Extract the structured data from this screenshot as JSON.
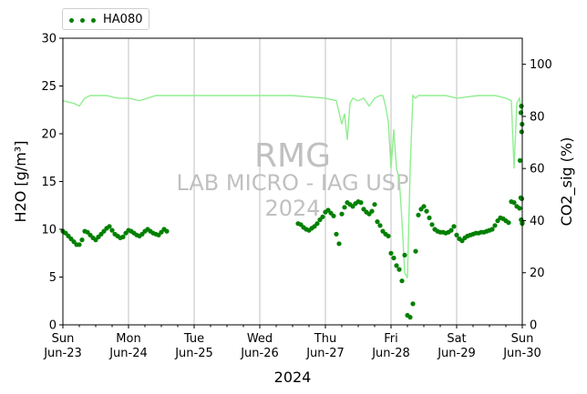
{
  "chart_data": {
    "type": "scatter",
    "legend": {
      "placement": "top-left",
      "entries": [
        "HA080"
      ]
    },
    "grid": "x-only",
    "colors": {
      "h2o": "#008000",
      "co2": "#90ee90",
      "watermark": "#c0c0c0"
    },
    "xlabel": "2024",
    "x_ticks": [
      {
        "day": "Sun",
        "date": "Jun-23"
      },
      {
        "day": "Mon",
        "date": "Jun-24"
      },
      {
        "day": "Tue",
        "date": "Jun-25"
      },
      {
        "day": "Wed",
        "date": "Jun-26"
      },
      {
        "day": "Thu",
        "date": "Jun-27"
      },
      {
        "day": "Fri",
        "date": "Jun-28"
      },
      {
        "day": "Sat",
        "date": "Jun-29"
      },
      {
        "day": "Sun",
        "date": "Jun-30"
      }
    ],
    "xlim": [
      "2024-06-23",
      "2024-06-30"
    ],
    "y_left": {
      "label": "H2O [g/m³]",
      "ylim": [
        0,
        30
      ],
      "ticks": [
        "0",
        "5",
        "10",
        "15",
        "20",
        "25",
        "30"
      ]
    },
    "y_right": {
      "label": "CO2_sig (%)",
      "ylim": [
        0,
        110
      ],
      "ticks": [
        "0",
        "20",
        "40",
        "60",
        "80",
        "100"
      ]
    },
    "watermark": [
      "RMG",
      "LAB MICRO - IAG USP",
      "2024"
    ],
    "series": [
      {
        "name": "HA080",
        "axis": "left",
        "marker": "dot",
        "x": [
          "2024-06-23 00:00",
          "2024-06-23 01:00",
          "2024-06-23 02:00",
          "2024-06-23 03:00",
          "2024-06-23 04:00",
          "2024-06-23 05:00",
          "2024-06-23 06:00",
          "2024-06-23 07:00",
          "2024-06-23 08:00",
          "2024-06-23 09:00",
          "2024-06-23 10:00",
          "2024-06-23 11:00",
          "2024-06-23 12:00",
          "2024-06-23 13:00",
          "2024-06-23 14:00",
          "2024-06-23 15:00",
          "2024-06-23 16:00",
          "2024-06-23 17:00",
          "2024-06-23 18:00",
          "2024-06-23 19:00",
          "2024-06-23 20:00",
          "2024-06-23 21:00",
          "2024-06-23 22:00",
          "2024-06-23 23:00",
          "2024-06-24 00:00",
          "2024-06-24 01:00",
          "2024-06-24 02:00",
          "2024-06-24 03:00",
          "2024-06-24 04:00",
          "2024-06-24 05:00",
          "2024-06-24 06:00",
          "2024-06-24 07:00",
          "2024-06-24 08:00",
          "2024-06-24 09:00",
          "2024-06-24 10:00",
          "2024-06-24 11:00",
          "2024-06-24 12:00",
          "2024-06-24 13:00",
          "2024-06-24 14:00",
          "2024-06-26 14:00",
          "2024-06-26 15:00",
          "2024-06-26 16:00",
          "2024-06-26 17:00",
          "2024-06-26 18:00",
          "2024-06-26 19:00",
          "2024-06-26 20:00",
          "2024-06-26 21:00",
          "2024-06-26 22:00",
          "2024-06-26 23:00",
          "2024-06-27 00:00",
          "2024-06-27 01:00",
          "2024-06-27 02:00",
          "2024-06-27 03:00",
          "2024-06-27 04:00",
          "2024-06-27 05:00",
          "2024-06-27 06:00",
          "2024-06-27 07:00",
          "2024-06-27 08:00",
          "2024-06-27 09:00",
          "2024-06-27 10:00",
          "2024-06-27 11:00",
          "2024-06-27 12:00",
          "2024-06-27 13:00",
          "2024-06-27 14:00",
          "2024-06-27 15:00",
          "2024-06-27 16:00",
          "2024-06-27 17:00",
          "2024-06-27 18:00",
          "2024-06-27 19:00",
          "2024-06-27 20:00",
          "2024-06-27 21:00",
          "2024-06-27 22:00",
          "2024-06-27 23:00",
          "2024-06-28 00:00",
          "2024-06-28 01:00",
          "2024-06-28 02:00",
          "2024-06-28 03:00",
          "2024-06-28 04:00",
          "2024-06-28 05:00",
          "2024-06-28 06:00",
          "2024-06-28 07:00",
          "2024-06-28 08:00",
          "2024-06-28 09:00",
          "2024-06-28 10:00",
          "2024-06-28 11:00",
          "2024-06-28 12:00",
          "2024-06-28 13:00",
          "2024-06-28 14:00",
          "2024-06-28 15:00",
          "2024-06-28 16:00",
          "2024-06-28 17:00",
          "2024-06-28 18:00",
          "2024-06-28 19:00",
          "2024-06-28 20:00",
          "2024-06-28 21:00",
          "2024-06-28 22:00",
          "2024-06-28 23:00",
          "2024-06-29 00:00",
          "2024-06-29 01:00",
          "2024-06-29 02:00",
          "2024-06-29 03:00",
          "2024-06-29 04:00",
          "2024-06-29 05:00",
          "2024-06-29 06:00",
          "2024-06-29 07:00",
          "2024-06-29 08:00",
          "2024-06-29 09:00",
          "2024-06-29 10:00",
          "2024-06-29 11:00",
          "2024-06-29 12:00",
          "2024-06-29 13:00",
          "2024-06-29 14:00",
          "2024-06-29 15:00",
          "2024-06-29 16:00",
          "2024-06-29 17:00",
          "2024-06-29 18:00",
          "2024-06-29 19:00",
          "2024-06-29 20:00",
          "2024-06-29 21:00",
          "2024-06-29 22:00",
          "2024-06-29 23:00"
        ],
        "values": [
          9.8,
          9.6,
          9.3,
          9.0,
          8.7,
          8.4,
          8.4,
          8.9,
          9.8,
          9.7,
          9.4,
          9.1,
          8.9,
          9.2,
          9.5,
          9.8,
          10.1,
          10.3,
          9.9,
          9.5,
          9.3,
          9.1,
          9.2,
          9.6,
          9.9,
          9.8,
          9.6,
          9.4,
          9.3,
          9.5,
          9.8,
          10.0,
          9.8,
          9.6,
          9.5,
          9.4,
          9.7,
          10.0,
          9.8,
          10.6,
          10.5,
          10.2,
          10.0,
          9.9,
          10.1,
          10.3,
          10.6,
          11.0,
          11.3,
          11.8,
          12.0,
          11.7,
          11.4,
          9.5,
          8.5,
          11.6,
          12.3,
          12.8,
          12.6,
          12.4,
          12.7,
          12.9,
          12.8,
          12.1,
          11.8,
          11.6,
          11.9,
          12.6,
          10.8,
          10.4,
          9.8,
          9.5,
          9.3,
          7.5,
          7.0,
          6.2,
          5.8,
          4.6,
          7.3,
          1.0,
          0.8,
          2.2,
          7.7,
          11.5,
          12.1,
          12.4,
          11.9,
          11.2,
          10.5,
          10.0,
          9.8,
          9.7,
          9.7,
          9.6,
          9.7,
          9.9,
          10.3,
          9.4,
          9.0,
          8.8,
          9.1,
          9.3,
          9.4,
          9.5,
          9.6,
          9.6,
          9.7,
          9.7,
          9.8,
          9.9,
          10.0,
          10.4,
          10.9,
          11.2,
          11.1,
          10.9,
          10.7,
          12.9,
          12.8,
          12.4,
          12.2
        ]
      },
      {
        "name": "",
        "axis": "left",
        "marker": "dot",
        "note_role": "excursion",
        "x": [
          "2024-06-29 23:10",
          "2024-06-29 23:25",
          "2024-06-29 23:40",
          "2024-06-29 23:55",
          "2024-06-29 23:30",
          "2024-06-29 23:45",
          "2024-06-29 23:50",
          "2024-06-29 23:35",
          "2024-06-29 23:58",
          "2024-06-29 23:59"
        ],
        "values": [
          17.2,
          13.3,
          22.9,
          21.0,
          22.2,
          20.2,
          13.2,
          11.0,
          10.6,
          10.7
        ]
      },
      {
        "name": "CO2_sig",
        "axis": "right",
        "line": true,
        "x": [
          "2024-06-23 00:00",
          "2024-06-23 04:00",
          "2024-06-23 06:00",
          "2024-06-23 08:00",
          "2024-06-23 10:00",
          "2024-06-23 16:00",
          "2024-06-23 20:00",
          "2024-06-24 00:00",
          "2024-06-24 04:00",
          "2024-06-24 10:00",
          "2024-06-24 16:00",
          "2024-06-25 00:00",
          "2024-06-25 12:00",
          "2024-06-26 00:00",
          "2024-06-26 12:00",
          "2024-06-27 00:00",
          "2024-06-27 04:00",
          "2024-06-27 06:00",
          "2024-06-27 07:00",
          "2024-06-27 08:00",
          "2024-06-27 09:00",
          "2024-06-27 10:00",
          "2024-06-27 12:00",
          "2024-06-27 14:00",
          "2024-06-27 16:00",
          "2024-06-27 18:00",
          "2024-06-27 20:00",
          "2024-06-27 21:00",
          "2024-06-27 22:00",
          "2024-06-27 23:00",
          "2024-06-28 00:00",
          "2024-06-28 01:00",
          "2024-06-28 02:00",
          "2024-06-28 03:00",
          "2024-06-28 04:00",
          "2024-06-28 05:00",
          "2024-06-28 06:00",
          "2024-06-28 07:00",
          "2024-06-28 08:00",
          "2024-06-28 09:00",
          "2024-06-28 10:00",
          "2024-06-28 12:00",
          "2024-06-28 16:00",
          "2024-06-28 20:00",
          "2024-06-29 00:00",
          "2024-06-29 08:00",
          "2024-06-29 14:00",
          "2024-06-29 18:00",
          "2024-06-29 20:00",
          "2024-06-29 21:00",
          "2024-06-29 22:00",
          "2024-06-29 23:00",
          "2024-06-30 00:00"
        ],
        "values": [
          86,
          85,
          84,
          87,
          88,
          88,
          87,
          87,
          86,
          88,
          88,
          88,
          88,
          88,
          88,
          87,
          86,
          77,
          81,
          71,
          85,
          87,
          86,
          87,
          84,
          87,
          88,
          88,
          84,
          78,
          60,
          75,
          60,
          56,
          40,
          20,
          18,
          60,
          88,
          87,
          88,
          88,
          88,
          88,
          87,
          88,
          88,
          87,
          86,
          60,
          85,
          87,
          80
        ]
      }
    ]
  }
}
